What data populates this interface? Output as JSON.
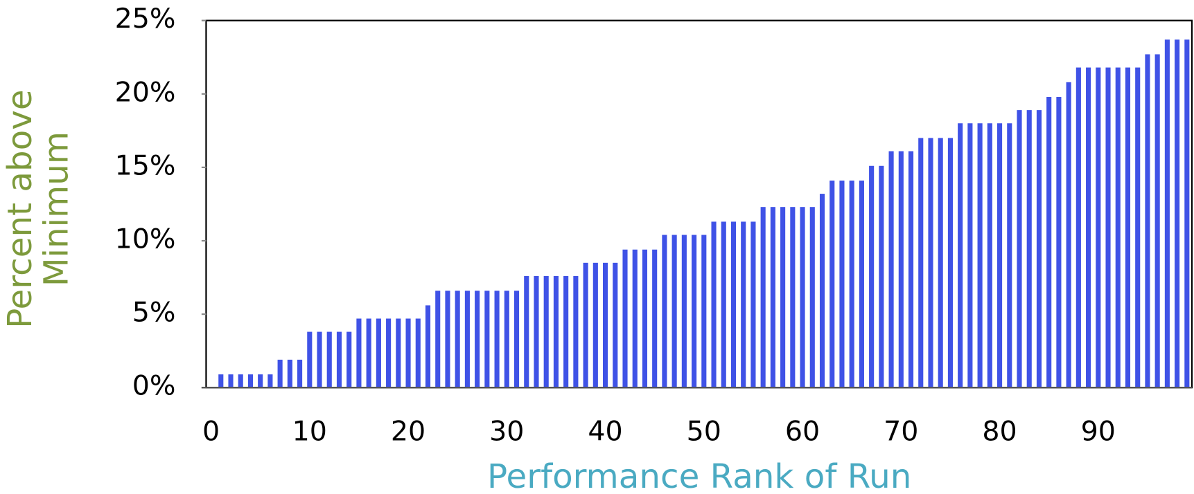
{
  "chart_data": {
    "type": "bar",
    "xlabel": "Performance Rank of Run",
    "ylabel": "Percent above Minimum",
    "x": [
      1,
      2,
      3,
      4,
      5,
      6,
      7,
      8,
      9,
      10,
      11,
      12,
      13,
      14,
      15,
      16,
      17,
      18,
      19,
      20,
      21,
      22,
      23,
      24,
      25,
      26,
      27,
      28,
      29,
      30,
      31,
      32,
      33,
      34,
      35,
      36,
      37,
      38,
      39,
      40,
      41,
      42,
      43,
      44,
      45,
      46,
      47,
      48,
      49,
      50,
      51,
      52,
      53,
      54,
      55,
      56,
      57,
      58,
      59,
      60,
      61,
      62,
      63,
      64,
      65,
      66,
      67,
      68,
      69,
      70,
      71,
      72,
      73,
      74,
      75,
      76,
      77,
      78,
      79,
      80,
      81,
      82,
      83,
      84,
      85,
      86,
      87,
      88,
      89,
      90,
      91,
      92,
      93,
      94,
      95,
      96,
      97,
      98,
      99
    ],
    "values": [
      0.9,
      0.9,
      0.9,
      0.9,
      0.9,
      0.9,
      1.9,
      1.9,
      1.9,
      3.8,
      3.8,
      3.8,
      3.8,
      3.8,
      4.7,
      4.7,
      4.7,
      4.7,
      4.7,
      4.7,
      4.7,
      5.6,
      6.6,
      6.6,
      6.6,
      6.6,
      6.6,
      6.6,
      6.6,
      6.6,
      6.6,
      7.6,
      7.6,
      7.6,
      7.6,
      7.6,
      7.6,
      8.5,
      8.5,
      8.5,
      8.5,
      9.4,
      9.4,
      9.4,
      9.4,
      10.4,
      10.4,
      10.4,
      10.4,
      10.4,
      11.3,
      11.3,
      11.3,
      11.3,
      11.3,
      12.3,
      12.3,
      12.3,
      12.3,
      12.3,
      12.3,
      13.2,
      14.1,
      14.1,
      14.1,
      14.1,
      15.1,
      15.1,
      16.1,
      16.1,
      16.1,
      17.0,
      17.0,
      17.0,
      17.0,
      18.0,
      18.0,
      18.0,
      18.0,
      18.0,
      18.0,
      18.9,
      18.9,
      18.9,
      19.8,
      19.8,
      20.8,
      21.8,
      21.8,
      21.8,
      21.8,
      21.8,
      21.8,
      21.8,
      22.7,
      22.7,
      23.7,
      23.7,
      23.7
    ],
    "color": "#3f52e6",
    "xlim": [
      -0.5,
      99.5
    ],
    "xticks": [
      0,
      10,
      20,
      30,
      40,
      50,
      60,
      70,
      80,
      90
    ],
    "ylim": [
      0,
      25
    ],
    "yticks": [
      {
        "value": 0,
        "label": "0%"
      },
      {
        "value": 5,
        "label": "5%"
      },
      {
        "value": 10,
        "label": "10%"
      },
      {
        "value": 15,
        "label": "15%"
      },
      {
        "value": 20,
        "label": "20%"
      },
      {
        "value": 25,
        "label": "25%"
      }
    ],
    "grid": false
  }
}
